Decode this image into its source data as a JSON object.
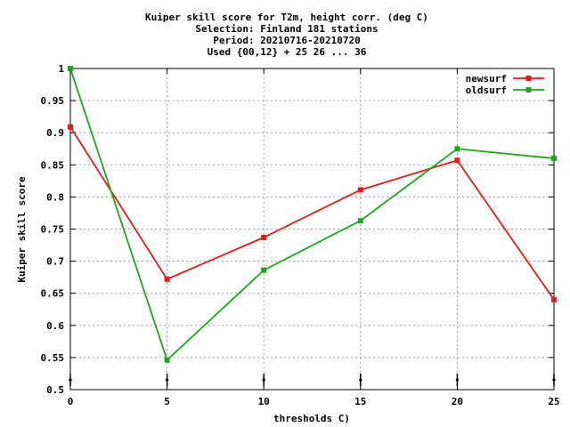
{
  "chart_data": {
    "type": "line",
    "title_lines": [
      "Kuiper skill score  for T2m, height corr. (deg C)",
      "Selection: Finland    181 stations",
      "Period: 20210716-20210720",
      "Used {00,12} + 25 26 ... 36"
    ],
    "xlabel": "thresholds C)",
    "ylabel": "Kuiper skill score",
    "x": [
      0,
      5,
      10,
      15,
      20,
      25
    ],
    "xlim": [
      0,
      25
    ],
    "ylim": [
      0.5,
      1.0
    ],
    "x_ticks": [
      0,
      5,
      10,
      15,
      20,
      25
    ],
    "x_tick_labels": [
      "0",
      "5",
      "10",
      "15",
      "20",
      "25"
    ],
    "y_ticks": [
      0.5,
      0.55,
      0.6,
      0.65,
      0.7,
      0.75,
      0.8,
      0.85,
      0.9,
      0.95,
      1.0
    ],
    "y_tick_labels": [
      "0.5",
      "0.55",
      "0.6",
      "0.65",
      "0.7",
      "0.75",
      "0.8",
      "0.85",
      "0.9",
      "0.95",
      "1"
    ],
    "grid": true,
    "legend_position": "top-right",
    "series": [
      {
        "name": "newsurf",
        "color": "#e41a1c",
        "values": [
          0.909,
          0.672,
          0.737,
          0.811,
          0.857,
          0.64
        ]
      },
      {
        "name": "oldsurf",
        "color": "#1aa81a",
        "values": [
          1.0,
          0.546,
          0.686,
          0.763,
          0.875,
          0.86
        ]
      }
    ]
  }
}
